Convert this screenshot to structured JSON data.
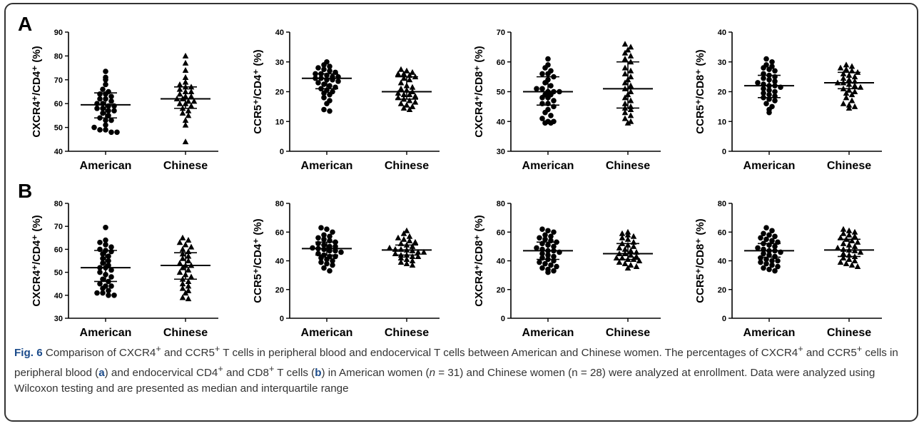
{
  "panels": [
    {
      "letter": "A"
    },
    {
      "letter": "B"
    }
  ],
  "caption": {
    "label": "Fig. 6",
    "text_html": "Comparison of CXCR4<sup>+</sup> and CCR5<sup>+</sup> T cells in peripheral blood and endocervical T cells between American and Chinese women. The percentages of CXCR4<sup>+</sup> and CCR5<sup>+</sup> cells in peripheral blood (<b>a</b>) and endocervical CD4<sup>+</sup> and CD8<sup>+</sup> T cells (<b>b</b>) in American women (<i>n</i> = 31) and Chinese women (n = 28) were analyzed at enrollment. Data were analyzed using Wilcoxon testing and are presented as median and interquartile range"
  },
  "chart_data": [
    {
      "type": "scatter",
      "panel": "A",
      "ylabel": "CXCR4⁺/CD4⁺ (%)",
      "categories": [
        "American",
        "Chinese"
      ],
      "ylim": [
        40,
        90
      ],
      "yticks": [
        40,
        50,
        60,
        70,
        80,
        90
      ],
      "series": [
        {
          "name": "American",
          "marker": "circle",
          "median": 59.5,
          "q1": 54,
          "q3": 64.5,
          "values": [
            73.5,
            71,
            70,
            68,
            66,
            65,
            64,
            64,
            63,
            62,
            62,
            61,
            60,
            60,
            59,
            59,
            58,
            58,
            57,
            57,
            56,
            55,
            54,
            53,
            53,
            51,
            50,
            49,
            49,
            48,
            48
          ]
        },
        {
          "name": "Chinese",
          "marker": "triangle",
          "median": 62,
          "q1": 58,
          "q3": 67,
          "values": [
            80,
            77,
            74,
            71,
            69,
            68,
            67,
            67,
            66,
            65,
            65,
            64,
            63,
            63,
            62,
            62,
            61,
            61,
            60,
            60,
            59,
            58,
            57,
            56,
            55,
            53,
            51,
            44
          ]
        }
      ]
    },
    {
      "type": "scatter",
      "panel": "A",
      "ylabel": "CCR5⁺/CD4⁺ (%)",
      "categories": [
        "American",
        "Chinese"
      ],
      "ylim": [
        0,
        40
      ],
      "yticks": [
        0,
        10,
        20,
        30,
        40
      ],
      "series": [
        {
          "name": "American",
          "marker": "circle",
          "median": 24.5,
          "q1": 21,
          "q3": 26,
          "values": [
            30,
            29,
            28.5,
            28,
            27.5,
            27,
            26.5,
            26,
            26,
            25.5,
            25,
            25,
            24.5,
            24.5,
            24,
            24,
            23.5,
            23,
            22.5,
            22,
            21.5,
            21,
            20.5,
            20,
            19.5,
            19,
            18,
            17,
            16,
            14,
            13.5
          ]
        },
        {
          "name": "Chinese",
          "marker": "triangle",
          "median": 20,
          "q1": 17.5,
          "q3": 25,
          "values": [
            27.5,
            27,
            26.5,
            26,
            26,
            25.5,
            25,
            24.5,
            24,
            23,
            22,
            21.5,
            21,
            20.5,
            20,
            19.5,
            19,
            19,
            18.5,
            18,
            17.5,
            17,
            16.5,
            16,
            15.5,
            15,
            14.5,
            14
          ]
        }
      ]
    },
    {
      "type": "scatter",
      "panel": "A",
      "ylabel": "CXCR4⁺/CD8⁺ (%)",
      "categories": [
        "American",
        "Chinese"
      ],
      "ylim": [
        30,
        70
      ],
      "yticks": [
        30,
        40,
        50,
        60,
        70
      ],
      "series": [
        {
          "name": "American",
          "marker": "circle",
          "median": 50,
          "q1": 45.5,
          "q3": 55,
          "values": [
            61,
            59,
            58,
            57,
            56,
            56,
            55,
            54,
            53,
            52,
            51,
            51,
            50,
            50,
            50,
            49,
            49,
            48,
            48,
            47,
            46,
            46,
            45,
            44,
            43,
            42,
            41,
            40,
            40,
            39.5,
            39.5
          ]
        },
        {
          "name": "Chinese",
          "marker": "triangle",
          "median": 51,
          "q1": 44.5,
          "q3": 60,
          "values": [
            66,
            65,
            64,
            63,
            62,
            61,
            60,
            58,
            57,
            56,
            55,
            54,
            53,
            52,
            51,
            50,
            49,
            48,
            47,
            46,
            45,
            44.5,
            44,
            43,
            42,
            41,
            40,
            39.5
          ]
        }
      ]
    },
    {
      "type": "scatter",
      "panel": "A",
      "ylabel": "CCR5⁺/CD8⁺ (%)",
      "categories": [
        "American",
        "Chinese"
      ],
      "ylim": [
        0,
        40
      ],
      "yticks": [
        0,
        10,
        20,
        30,
        40
      ],
      "series": [
        {
          "name": "American",
          "marker": "circle",
          "median": 22,
          "q1": 18,
          "q3": 25.5,
          "values": [
            31,
            30,
            29,
            28.5,
            28,
            27.5,
            27,
            26,
            25.5,
            25,
            24.5,
            24,
            23.5,
            23,
            22.5,
            22,
            22,
            21.5,
            21,
            20.5,
            20,
            19.5,
            19,
            18.5,
            18,
            17.5,
            17,
            16,
            15,
            14,
            13
          ]
        },
        {
          "name": "Chinese",
          "marker": "triangle",
          "median": 23,
          "q1": 21,
          "q3": 26.5,
          "values": [
            29,
            28.5,
            28,
            27.5,
            27,
            26.5,
            26,
            25.5,
            25,
            24.5,
            24,
            23.5,
            23,
            23,
            22.5,
            22,
            21.5,
            21,
            20.5,
            20,
            19.5,
            19,
            18,
            17,
            16,
            15.5,
            15,
            14.5
          ]
        }
      ]
    },
    {
      "type": "scatter",
      "panel": "B",
      "ylabel": "CXCR4⁺/CD4⁺ (%)",
      "categories": [
        "American",
        "Chinese"
      ],
      "ylim": [
        30,
        80
      ],
      "yticks": [
        30,
        40,
        50,
        60,
        70,
        80
      ],
      "series": [
        {
          "name": "American",
          "marker": "circle",
          "median": 52,
          "q1": 46,
          "q3": 59.5,
          "values": [
            69.5,
            64,
            63,
            62,
            61,
            60,
            59.5,
            59,
            58,
            57,
            56,
            55,
            54,
            53,
            52,
            52,
            51,
            50,
            49,
            48,
            47,
            46,
            45,
            44,
            44,
            43,
            42,
            41,
            41,
            40,
            40
          ]
        },
        {
          "name": "Chinese",
          "marker": "triangle",
          "median": 53,
          "q1": 47,
          "q3": 58.5,
          "values": [
            65,
            64,
            63,
            62,
            61,
            60,
            59,
            58,
            57,
            56,
            55,
            54,
            53,
            53,
            52,
            51,
            50,
            49,
            48,
            47,
            46,
            45,
            44,
            43,
            42,
            41,
            39,
            38.5
          ]
        }
      ]
    },
    {
      "type": "scatter",
      "panel": "B",
      "ylabel": "CCR5⁺/CD4⁺ (%)",
      "categories": [
        "American",
        "Chinese"
      ],
      "ylim": [
        0,
        80
      ],
      "yticks": [
        0,
        20,
        40,
        60,
        80
      ],
      "series": [
        {
          "name": "American",
          "marker": "circle",
          "median": 48.5,
          "q1": 44,
          "q3": 53,
          "values": [
            63,
            62,
            60,
            58,
            57,
            56,
            55,
            54,
            53,
            52,
            51,
            50,
            50,
            49,
            48.5,
            48,
            47,
            47,
            46,
            45,
            44,
            43,
            43,
            42,
            41,
            40,
            39,
            38,
            37,
            35,
            33
          ]
        },
        {
          "name": "Chinese",
          "marker": "triangle",
          "median": 47.5,
          "q1": 44,
          "q3": 51,
          "values": [
            61,
            59,
            57,
            56,
            55,
            54,
            53,
            52,
            51,
            50,
            49,
            48,
            48,
            47.5,
            47,
            46,
            46,
            45,
            44,
            44,
            43,
            43,
            42,
            41,
            40,
            39,
            38,
            37
          ]
        }
      ]
    },
    {
      "type": "scatter",
      "panel": "B",
      "ylabel": "CXCR4⁺/CD8⁺ (%)",
      "categories": [
        "American",
        "Chinese"
      ],
      "ylim": [
        0,
        80
      ],
      "yticks": [
        0,
        20,
        40,
        60,
        80
      ],
      "series": [
        {
          "name": "American",
          "marker": "circle",
          "median": 47,
          "q1": 41,
          "q3": 53,
          "values": [
            62,
            61,
            60,
            58,
            57,
            56,
            55,
            54,
            53,
            52,
            51,
            50,
            49,
            48,
            47,
            47,
            46,
            45,
            44,
            43,
            42,
            41,
            40,
            39,
            38,
            37,
            36,
            35,
            34,
            33,
            32
          ]
        },
        {
          "name": "Chinese",
          "marker": "triangle",
          "median": 45,
          "q1": 41,
          "q3": 52,
          "values": [
            60,
            59,
            58,
            57,
            56,
            55,
            53,
            52,
            51,
            50,
            49,
            48,
            47,
            46,
            45,
            45,
            44,
            43,
            42,
            42,
            41,
            41,
            40,
            39,
            38,
            37,
            36,
            35
          ]
        }
      ]
    },
    {
      "type": "scatter",
      "panel": "B",
      "ylabel": "CCR5⁺/CD8⁺ (%)",
      "categories": [
        "American",
        "Chinese"
      ],
      "ylim": [
        0,
        80
      ],
      "yticks": [
        0,
        20,
        40,
        60,
        80
      ],
      "series": [
        {
          "name": "American",
          "marker": "circle",
          "median": 47,
          "q1": 42.5,
          "q3": 52,
          "values": [
            63,
            61,
            59,
            58,
            57,
            56,
            55,
            54,
            53,
            52,
            51,
            50,
            49,
            48,
            47,
            47,
            46,
            45,
            44,
            43,
            42,
            41,
            40,
            40,
            39,
            38,
            37,
            36,
            35,
            34,
            33
          ]
        },
        {
          "name": "Chinese",
          "marker": "triangle",
          "median": 47.5,
          "q1": 43,
          "q3": 55,
          "values": [
            62,
            61,
            60,
            59,
            58,
            57,
            56,
            55,
            54,
            53,
            52,
            51,
            50,
            49,
            48,
            47.5,
            47,
            46,
            45,
            44,
            43,
            42,
            41,
            40,
            39,
            38,
            37,
            36
          ]
        }
      ]
    }
  ]
}
